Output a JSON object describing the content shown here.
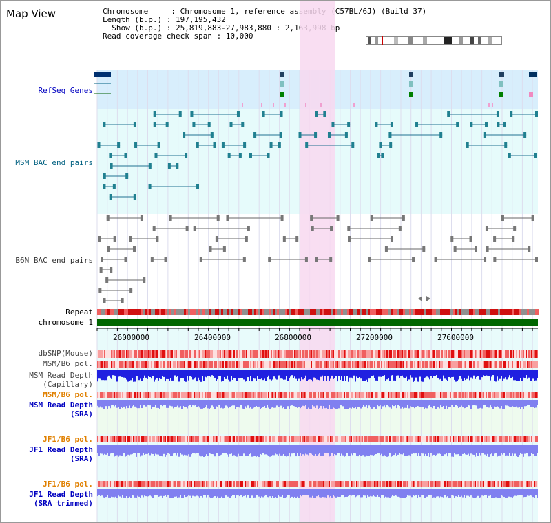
{
  "title": "Map View",
  "info": {
    "chromosome_line": "Chromosome     : Chromosome 1, reference assembly (C57BL/6J) (Build 37)",
    "length_line": "Length (b.p.) : 197,195,432",
    "show_line": "  Show (b.p.) : 25,819,883-27,983,880 : 2,163,998 bp",
    "span_line": "Read coverage check span : 10,000"
  },
  "tracks": {
    "refseq_genes": "RefSeq Genes",
    "msm_bac": "MSM BAC end pairs",
    "b6n_bac": "B6N BAC end pairs",
    "repeat": "Repeat",
    "chromosome": "chromosome 1",
    "dbsnp": "dbSNP(Mouse)",
    "msm_b6_pol_1": "MSM/B6 pol.",
    "msm_read_depth_cap": "MSM Read Depth\n(Capillary)",
    "msm_b6_pol_2": "MSM/B6 pol.",
    "msm_read_depth_sra": "MSM Read Depth\n(SRA)",
    "jf1_b6_pol_1": "JF1/B6 pol.",
    "jf1_read_depth_sra": "JF1 Read Depth\n(SRA)",
    "jf1_b6_pol_2": "JF1/B6 pol.",
    "jf1_read_depth_trim": "JF1 Read Depth\n(SRA trimmed)"
  },
  "axis": {
    "ticks": [
      "26000000",
      "26400000",
      "26800000",
      "27200000",
      "27600000"
    ]
  },
  "colors": {
    "highlight": "#f8d8f0",
    "gene_bg": "#d8eefc",
    "bac_bg": "#e6fbfb",
    "chromosome_green": "#006600",
    "depth_blue": "#2020e0",
    "depth_light": "#8080f0"
  }
}
